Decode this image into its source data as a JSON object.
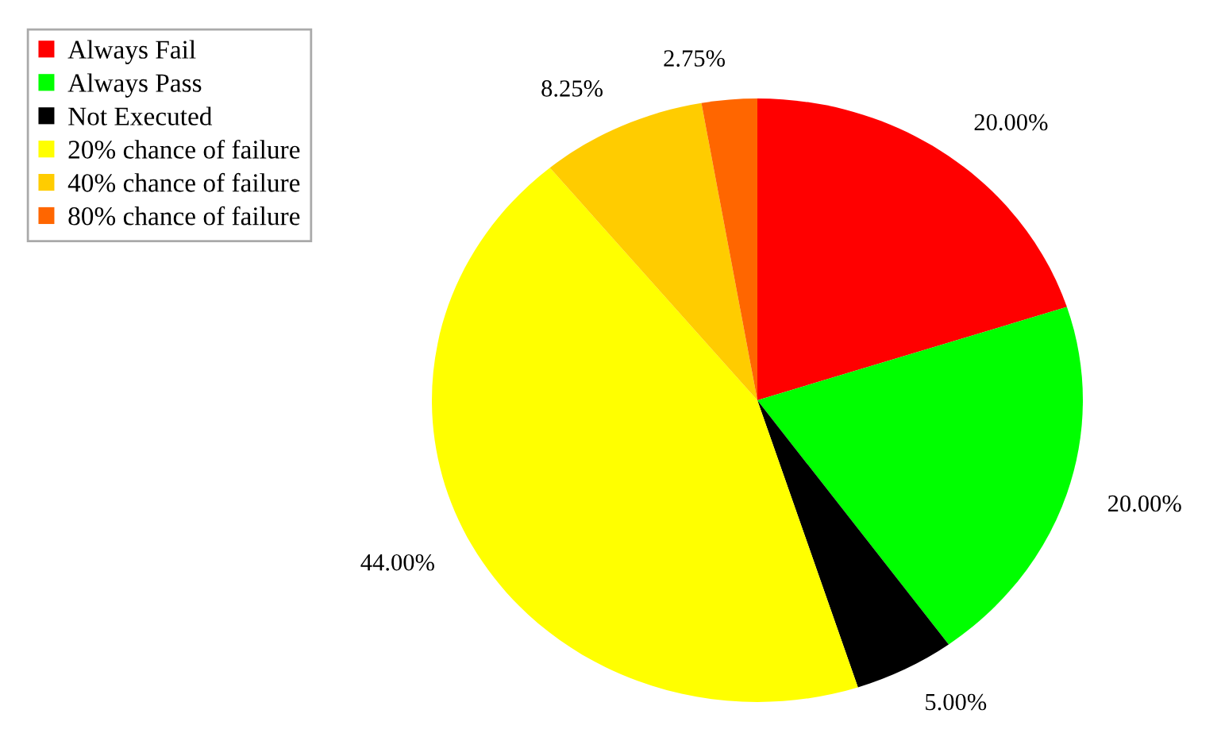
{
  "chart_data": {
    "type": "pie",
    "categories": [
      "Always Fail",
      "Always Pass",
      "Not Executed",
      "20% chance of failure",
      "40% chance of failure",
      "80% chance of failure"
    ],
    "values": [
      20,
      20,
      5,
      44,
      8.25,
      2.75
    ],
    "colors": [
      "#ff0000",
      "#00ff00",
      "#000000",
      "#ffff00",
      "#ffcc00",
      "#ff6600"
    ],
    "value_labels": [
      "20.00%",
      "20.00%",
      "5.00%",
      "44.00%",
      "8.25%",
      "2.75%"
    ],
    "legend": "top left"
  }
}
